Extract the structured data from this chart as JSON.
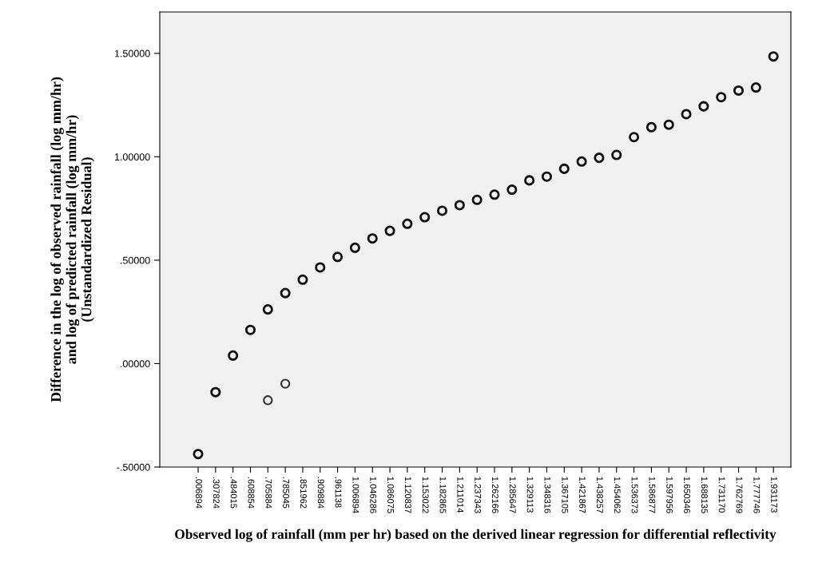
{
  "chart_data": {
    "type": "scatter",
    "xlabel": "Observed log of rainfall (mm per hr) based on the derived linear regression for differential reflectivity",
    "ylabel": "Difference in the log of observed rainfall (log mm/hr)\nand log of predicted rainfall (log mm/hr)\n(Unstandardized Residual)",
    "categories": [
      ".006894",
      ".307824",
      ".484015",
      ".608854",
      ".705884",
      ".785045",
      ".851962",
      ".909884",
      ".961138",
      "1.006894",
      "1.046286",
      "1.086075",
      "1.120837",
      "1.153022",
      "1.182865",
      "1.211014",
      "1.237343",
      "1.262166",
      "1.285647",
      "1.329113",
      "1.348316",
      "1.367105",
      "1.421867",
      "1.438257",
      "1.454062",
      "1.536373",
      "1.586877",
      "1.597956",
      "1.650346",
      "1.688135",
      "1.731170",
      "1.762769",
      "1.777746",
      "1.931173"
    ],
    "series": [
      {
        "color": "#111111",
        "values": [
          -0.437,
          -0.138,
          0.039,
          0.163,
          0.262,
          0.341,
          0.406,
          0.465,
          0.516,
          0.56,
          0.605,
          0.642,
          0.676,
          0.708,
          0.739,
          0.766,
          0.792,
          0.817,
          0.841,
          0.886,
          0.904,
          0.942,
          0.977,
          0.995,
          1.009,
          1.095,
          1.143,
          1.155,
          1.206,
          1.244,
          1.288,
          1.32,
          1.335,
          1.485
        ]
      },
      {
        "color": "#333333",
        "values": [
          null,
          null,
          null,
          null,
          -0.177,
          -0.097,
          null,
          null,
          null,
          null,
          null,
          null,
          null,
          null,
          null,
          null,
          null,
          null,
          null,
          null,
          null,
          null,
          null,
          null,
          null,
          null,
          null,
          null,
          null,
          null,
          null,
          null,
          null,
          null
        ]
      }
    ],
    "ylim": [
      -0.5,
      1.7
    ],
    "yticks": [
      {
        "value": -0.5,
        "label": "-.50000"
      },
      {
        "value": 0,
        "label": ".00000"
      },
      {
        "value": 0.5,
        "label": ".50000"
      },
      {
        "value": 1.0,
        "label": "1.00000"
      },
      {
        "value": 1.5,
        "label": "1.50000"
      }
    ],
    "marker": "circle",
    "grid": false
  }
}
